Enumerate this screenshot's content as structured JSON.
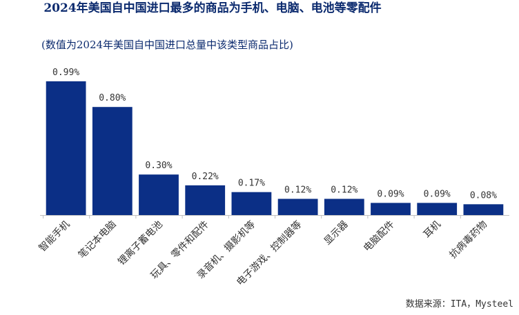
{
  "title": "2024年美国自中国进口最多的商品为手机、电脑、电池等零配件",
  "subtitle": "(数值为2024年美国自中国进口总量中该类型商品占比)",
  "source": "数据来源：ITA，Mysteel",
  "colors": {
    "bar": "#0b2f86",
    "title": "#0b2a6e",
    "text": "#333333",
    "axis": "#bfbfbf"
  },
  "chart_data": {
    "type": "bar",
    "title": "2024年美国自中国进口最多的商品为手机、电脑、电池等零配件",
    "subtitle": "(数值为2024年美国自中国进口总量中该类型商品占比)",
    "xlabel": "",
    "ylabel": "",
    "categories": [
      "智能手机",
      "笔记本电脑",
      "锂离子蓄电池",
      "玩具、零件和配件",
      "录音机、摄影机等",
      "电子游戏、控制器等",
      "显示器",
      "电脑配件",
      "耳机",
      "抗病毒药物"
    ],
    "values": [
      0.99,
      0.8,
      0.3,
      0.22,
      0.17,
      0.12,
      0.12,
      0.09,
      0.09,
      0.08
    ],
    "data_labels": [
      "0.99%",
      "0.80%",
      "0.30%",
      "0.22%",
      "0.17%",
      "0.12%",
      "0.12%",
      "0.09%",
      "0.09%",
      "0.08%"
    ],
    "unit": "%",
    "ylim": [
      0,
      1.0
    ],
    "grid": false,
    "legend": "none"
  }
}
